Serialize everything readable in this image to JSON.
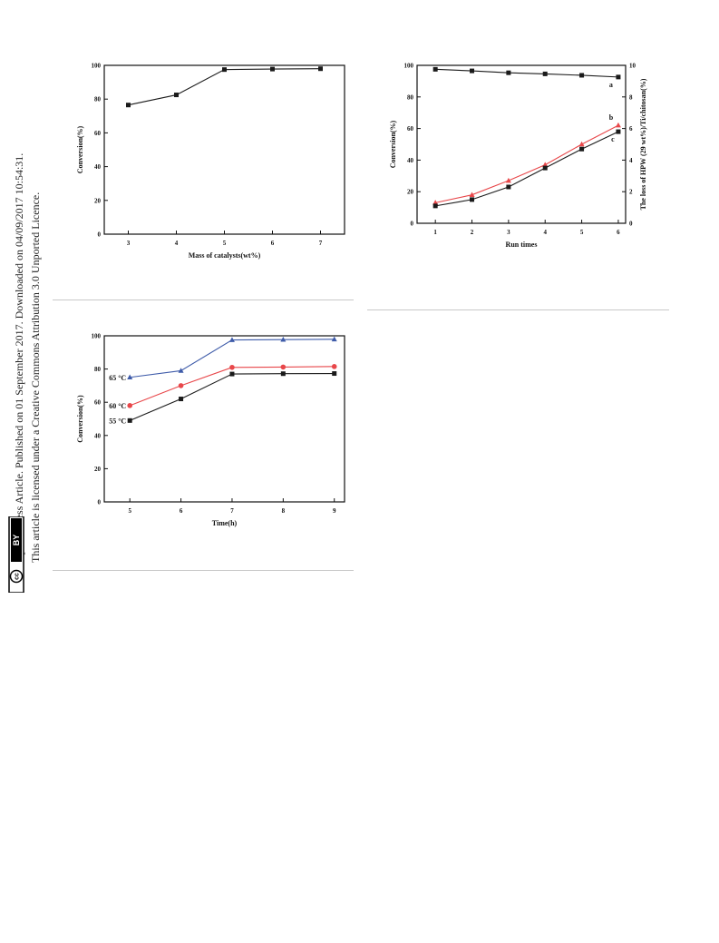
{
  "sidebar": {
    "line1": "Open Access Article. Published on 01 September 2017. Downloaded on 04/09/2017 10:54:31.",
    "line2": "This article is licensed under a Creative Commons Attribution 3.0 Unported Licence.",
    "badge_cc": "cc",
    "badge_by": "BY"
  },
  "chart_data": [
    {
      "type": "line",
      "title": "",
      "xlabel": "Mass of catalysts(wt%)",
      "ylabel": "Conversion(%)",
      "x": [
        3,
        4,
        5,
        6,
        7
      ],
      "xlim": [
        2.5,
        7.5
      ],
      "xticks": [
        "3",
        "4",
        "5",
        "6",
        "7"
      ],
      "ylim": [
        0,
        100
      ],
      "yticks": [
        "0",
        "20",
        "40",
        "60",
        "80",
        "100"
      ],
      "grid": false,
      "series": [
        {
          "values": [
            76.5,
            82.5,
            97.5,
            97.8,
            98.0
          ],
          "color": "#1a1a1a",
          "marker": "square"
        }
      ]
    },
    {
      "type": "line",
      "title": "",
      "xlabel": "Run times",
      "ylabel": "Conversion(%)",
      "y2label": "The loss of HPW (29 wt%)/Ti/chitosan(%)",
      "x": [
        1,
        2,
        3,
        4,
        5,
        6
      ],
      "xlim": [
        0.5,
        6.2
      ],
      "xticks": [
        "1",
        "2",
        "3",
        "4",
        "5",
        "6"
      ],
      "ylim": [
        0,
        100
      ],
      "yticks": [
        "0",
        "20",
        "40",
        "60",
        "80",
        "100"
      ],
      "y2lim": [
        0,
        10
      ],
      "y2ticks": [
        "0",
        "2",
        "4",
        "6",
        "8",
        "10"
      ],
      "grid": false,
      "series": [
        {
          "name": "a",
          "axis": "left",
          "values": [
            97.5,
            96.5,
            95.3,
            94.6,
            93.7,
            92.6
          ],
          "color": "#1a1a1a",
          "marker": "square"
        },
        {
          "name": "b",
          "axis": "right",
          "values": [
            1.3,
            1.8,
            2.7,
            3.7,
            5.0,
            6.2
          ],
          "color": "#e8474a",
          "marker": "triangle"
        },
        {
          "name": "c",
          "axis": "right",
          "values": [
            1.1,
            1.5,
            2.3,
            3.5,
            4.7,
            5.8
          ],
          "color": "#1a1a1a",
          "marker": "square"
        }
      ]
    },
    {
      "type": "line",
      "title": "",
      "xlabel": "Time(h)",
      "ylabel": "Conversion(%)",
      "x": [
        5,
        6,
        7,
        8,
        9
      ],
      "xlim": [
        4.5,
        9.2
      ],
      "xticks": [
        "5",
        "6",
        "7",
        "8",
        "9"
      ],
      "ylim": [
        0,
        100
      ],
      "yticks": [
        "0",
        "20",
        "40",
        "60",
        "80",
        "100"
      ],
      "grid": false,
      "series": [
        {
          "name": "65 °C",
          "values": [
            75,
            79,
            97.5,
            97.7,
            97.9
          ],
          "color": "#3e5ba9",
          "marker": "triangle"
        },
        {
          "name": "60 °C",
          "values": [
            58,
            70,
            81,
            81.2,
            81.5
          ],
          "color": "#e8474a",
          "marker": "circle"
        },
        {
          "name": "55 °C",
          "values": [
            49,
            62,
            77,
            77.2,
            77.3
          ],
          "color": "#1a1a1a",
          "marker": "square"
        }
      ]
    }
  ]
}
